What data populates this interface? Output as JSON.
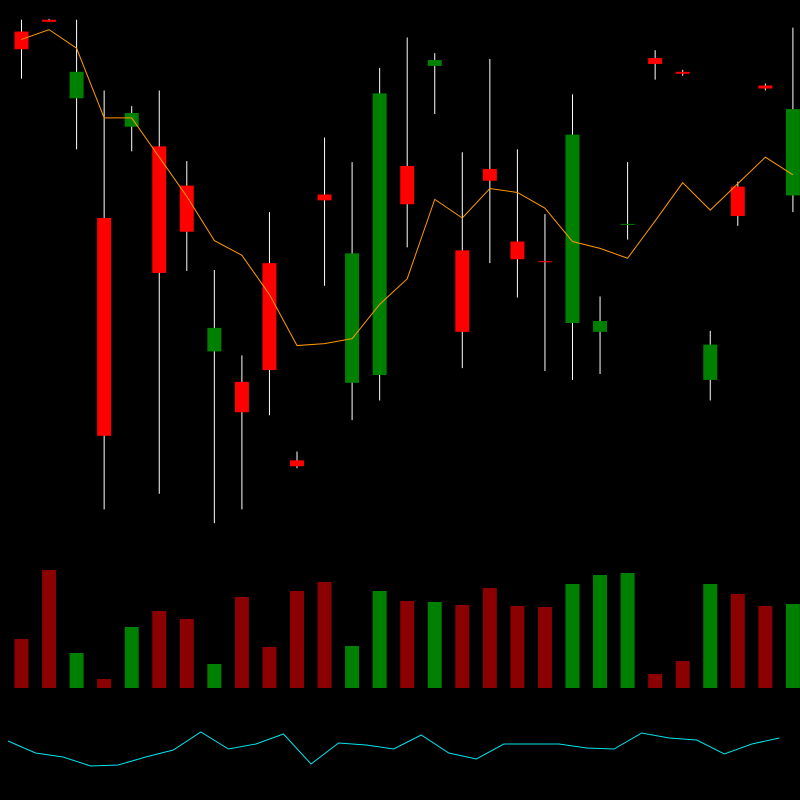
{
  "chart_data": {
    "type": "candlestick",
    "open": [
      508,
      520,
      440,
      318,
      411,
      391,
      351,
      182,
      151,
      272,
      71,
      342,
      150,
      158,
      371,
      473,
      285,
      368,
      294,
      274,
      211,
      202,
      311.5,
      481,
      467,
      153,
      350,
      453,
      341
    ],
    "high": [
      520,
      521,
      520,
      448,
      432,
      448,
      376,
      265,
      178,
      324,
      80,
      400,
      375,
      471,
      502,
      486,
      385,
      480,
      388,
      322,
      444,
      238,
      375,
      489,
      469,
      203,
      355,
      455,
      512
    ],
    "low": [
      460,
      518,
      388,
      21,
      386,
      37,
      264,
      7,
      21,
      117,
      63,
      249,
      112,
      132,
      288,
      424,
      165,
      272,
      237,
      162,
      153,
      159,
      296,
      459,
      463,
      132,
      310,
      448,
      324
    ],
    "close": [
      490,
      518,
      467,
      96,
      425,
      262,
      304,
      206,
      120,
      163,
      65,
      336,
      282,
      445,
      332,
      479,
      202,
      356,
      276,
      273,
      403,
      213,
      312,
      475,
      465,
      189,
      320,
      450,
      429
    ],
    "up_color": "#008000",
    "down_color": "#ff0000",
    "wick_color": "#ffffff",
    "ylim": [
      0,
      530
    ],
    "ma": {
      "color": "#ff9900",
      "values": [
        500,
        510,
        491,
        420,
        420,
        380,
        340,
        295,
        280,
        240,
        188,
        190,
        195,
        230,
        256,
        337,
        318,
        348,
        344,
        328,
        294,
        287,
        277,
        315,
        354,
        326,
        353,
        380,
        362
      ]
    },
    "volume": {
      "values": [
        49,
        118,
        35,
        9,
        61,
        77,
        69,
        24,
        91,
        41,
        97,
        106,
        42,
        97,
        87,
        86,
        83,
        100,
        82,
        81,
        104,
        113,
        115,
        14,
        27,
        104,
        94,
        82,
        84
      ],
      "ylim": [
        0,
        130
      ],
      "up_color": "#008000",
      "down_color": "#8b0000"
    },
    "indicator": {
      "color": "#00e5ee",
      "values": [
        59,
        47,
        43,
        34,
        35,
        43,
        50,
        68,
        51,
        56,
        66,
        36,
        57,
        55,
        51,
        65,
        47,
        41,
        56,
        56,
        56,
        52,
        51,
        67,
        62,
        60,
        46,
        56,
        62
      ],
      "ylim": [
        0,
        100
      ]
    }
  }
}
